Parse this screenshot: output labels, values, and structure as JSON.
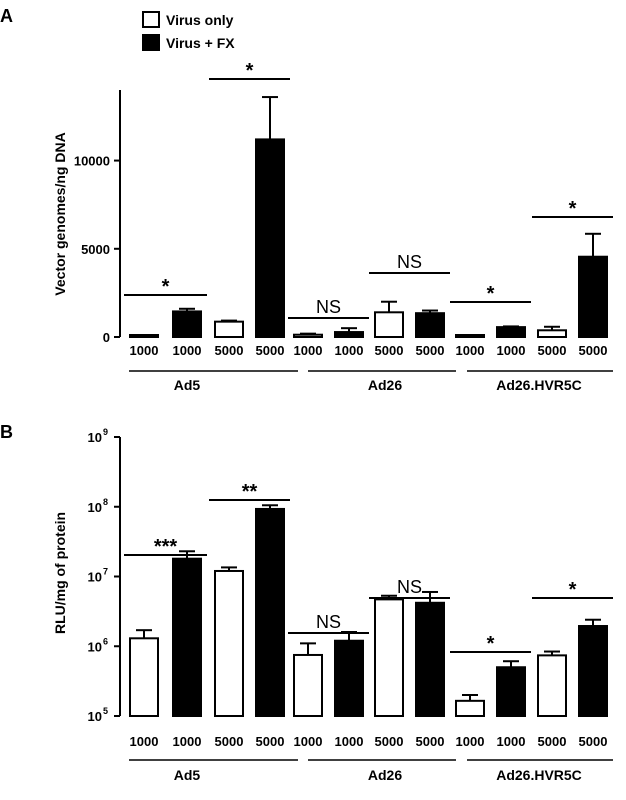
{
  "legend": [
    {
      "label": "Virus only",
      "fill": "#ffffff"
    },
    {
      "label": "Virus + FX",
      "fill": "#000000"
    }
  ],
  "chart_data": [
    {
      "panel": "A",
      "type": "bar",
      "ylabel": "Vector genomes/ng DNA",
      "yscale": "linear",
      "ylim": [
        0,
        14000
      ],
      "yticks": [
        "0",
        "5000",
        "10000"
      ],
      "categories": [
        "1000",
        "1000",
        "5000",
        "5000",
        "1000",
        "1000",
        "5000",
        "5000",
        "1000",
        "1000",
        "5000",
        "5000"
      ],
      "groups": [
        "Ad5",
        "Ad26",
        "Ad26.HVR5C"
      ],
      "series_pattern": [
        "Virus only",
        "Virus + FX",
        "Virus only",
        "Virus + FX"
      ],
      "values": [
        40,
        1450,
        870,
        11200,
        130,
        280,
        1400,
        1350,
        60,
        560,
        380,
        4550
      ],
      "errors": [
        20,
        150,
        60,
        2400,
        60,
        220,
        600,
        150,
        30,
        40,
        200,
        1300
      ],
      "annotations": [
        {
          "text": "*",
          "bars": [
            0,
            1
          ]
        },
        {
          "text": "*",
          "bars": [
            2,
            3
          ]
        },
        {
          "text": "NS",
          "bars": [
            4,
            5
          ]
        },
        {
          "text": "NS",
          "bars": [
            6,
            7
          ]
        },
        {
          "text": "*",
          "bars": [
            8,
            9
          ]
        },
        {
          "text": "*",
          "bars": [
            10,
            11
          ]
        }
      ]
    },
    {
      "panel": "B",
      "type": "bar",
      "ylabel": "RLU/mg of protein",
      "yscale": "log",
      "ylim": [
        100000,
        1000000000
      ],
      "yticks": [
        "10",
        "10",
        "10",
        "10",
        "10"
      ],
      "ytick_exponents": [
        "5",
        "6",
        "7",
        "8",
        "9"
      ],
      "categories": [
        "1000",
        "1000",
        "5000",
        "5000",
        "1000",
        "1000",
        "5000",
        "5000",
        "1000",
        "1000",
        "5000",
        "5000"
      ],
      "groups": [
        "Ad5",
        "Ad26",
        "Ad26.HVR5C"
      ],
      "series_pattern": [
        "Virus only",
        "Virus + FX",
        "Virus only",
        "Virus + FX"
      ],
      "values": [
        1300000,
        18000000,
        12000000,
        93000000,
        750000,
        1200000,
        4700000,
        4200000,
        165000,
        500000,
        740000,
        1950000
      ],
      "errors_upper": [
        1700000,
        23000000,
        13500000,
        105000000,
        1100000,
        1600000,
        5300000,
        6000000,
        200000,
        610000,
        840000,
        2400000
      ],
      "annotations": [
        {
          "text": "***",
          "bars": [
            0,
            1
          ]
        },
        {
          "text": "**",
          "bars": [
            2,
            3
          ]
        },
        {
          "text": "NS",
          "bars": [
            4,
            5
          ]
        },
        {
          "text": "NS",
          "bars": [
            6,
            7
          ]
        },
        {
          "text": "*",
          "bars": [
            8,
            9
          ]
        },
        {
          "text": "*",
          "bars": [
            10,
            11
          ]
        }
      ]
    }
  ]
}
